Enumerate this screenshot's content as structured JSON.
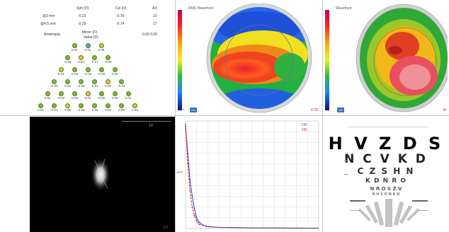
{
  "aberrometry": {
    "header_row": [
      "Sph (D)",
      "Cyl (D)",
      "AX"
    ],
    "rows": [
      {
        "label": "@3 mm",
        "values": [
          "-0.23",
          "-0.75",
          "13"
        ]
      },
      {
        "label": "@4.5 mm",
        "values": [
          "-0.29",
          "-0.74",
          "17"
        ]
      }
    ],
    "sub_left": "Ametropia",
    "sub_center": "Mirror (D)",
    "sub_center2": "Value (D)",
    "sub_right": "0.00 0.00",
    "pyramid_values": [
      [
        "0.04",
        "0.02",
        "0.05"
      ],
      [
        "-0.06",
        "0.04",
        "-0.17",
        "-0.08"
      ],
      [
        "0.04",
        "-0.03",
        "-0.18",
        "-0.09",
        "0.02"
      ],
      [
        "-0.06",
        "0.02",
        "-0.08",
        "-0.03",
        "0.05",
        "-0.02"
      ],
      [
        "0.06",
        "-0.04",
        "-0.02",
        "0.03",
        "-0.06",
        "0.04",
        "0.02"
      ],
      [
        "0.01",
        "-0.01",
        "0.06",
        "-0.06",
        "-0.08",
        "0.03",
        "0.09",
        "0.02"
      ]
    ],
    "dot_colors": [
      "#7fb83a",
      "#e0c43a",
      "#d84a3a",
      "#5a9fd6"
    ]
  },
  "map_left": {
    "title": "RMS Wavefront",
    "scale_min": "-1.0",
    "scale_max": "1.0",
    "tag": "OD",
    "value": "0.70"
  },
  "map_right": {
    "title": "Wavefront",
    "scale_min": "-1.0",
    "scale_max": "1.0",
    "tag": "OD",
    "value": "N"
  },
  "psf": {
    "top_right": "10'",
    "bottom_right": "0.0'"
  },
  "mtf": {
    "legend": [
      "OD",
      "OD"
    ],
    "ylabel": "MTF",
    "xlabel": "cyc/deg"
  },
  "chart_data": {
    "type": "line",
    "title": "",
    "xlabel": "",
    "ylabel": "",
    "xlim": [
      0,
      60
    ],
    "ylim": [
      0,
      1
    ],
    "grid": true,
    "series": [
      {
        "color": "#2a3fd0",
        "x": [
          0,
          1,
          2,
          3,
          4,
          5,
          6,
          8,
          10,
          15,
          20,
          30,
          40,
          50,
          60
        ],
        "y": [
          0.95,
          0.7,
          0.45,
          0.3,
          0.18,
          0.1,
          0.06,
          0.03,
          0.02,
          0.01,
          0.01,
          0.005,
          0.005,
          0.003,
          0.002
        ]
      },
      {
        "color": "#d02020",
        "x": [
          0,
          1,
          2,
          3,
          4,
          5,
          6,
          8,
          10,
          15,
          20,
          30,
          40,
          50,
          60
        ],
        "y": [
          0.97,
          0.6,
          0.35,
          0.2,
          0.12,
          0.07,
          0.04,
          0.025,
          0.015,
          0.01,
          0.008,
          0.006,
          0.005,
          0.004,
          0.003
        ]
      }
    ]
  },
  "eye_chart": {
    "rows": [
      "H V Z D S",
      "N C V K D",
      "C Z S H N",
      "K D N R O",
      "N R O S Z V",
      "R H S O N K D"
    ]
  }
}
